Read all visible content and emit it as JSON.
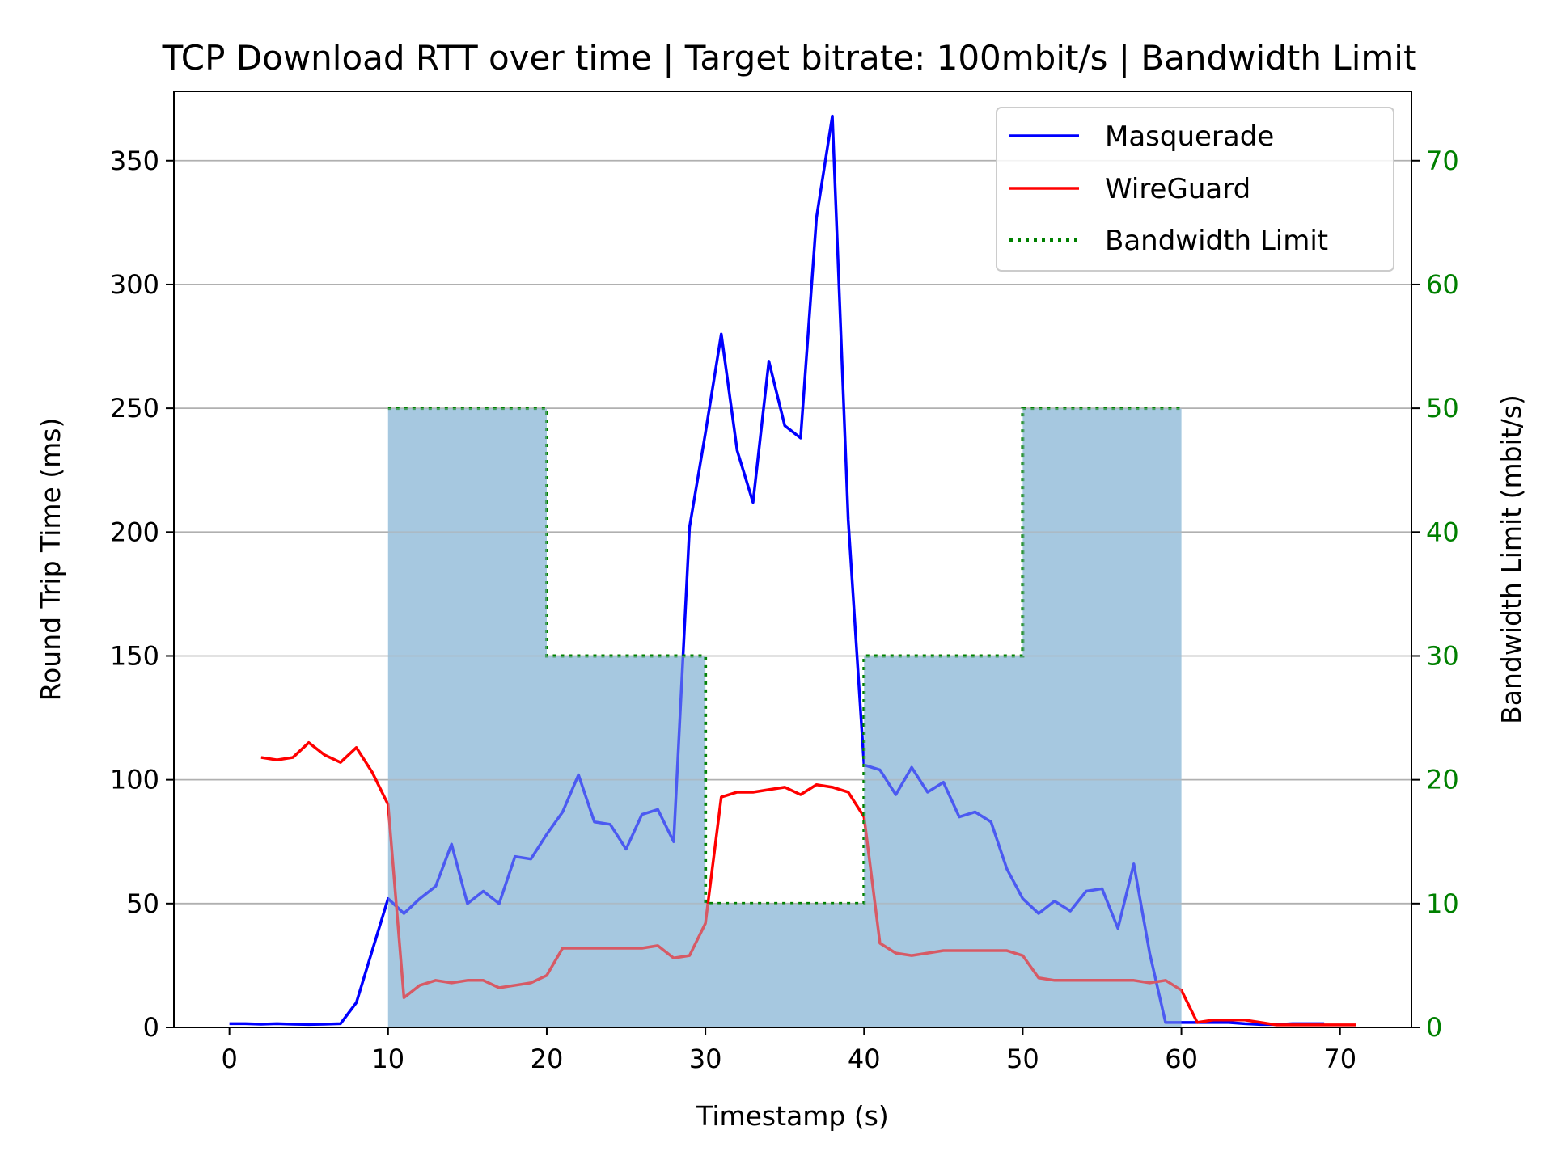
{
  "chart_data": {
    "type": "line",
    "title": "TCP Download RTT over time | Target bitrate: 100mbit/s | Bandwidth Limit",
    "xlabel": "Timestamp (s)",
    "ylabel": "Round Trip Time (ms)",
    "y2label": "Bandwidth Limit (mbit/s)",
    "xlim": [
      -3.5,
      74.5
    ],
    "ylim": [
      0,
      378
    ],
    "y2lim": [
      0,
      75.6
    ],
    "xticks": [
      "0",
      "10",
      "20",
      "30",
      "40",
      "50",
      "60",
      "70"
    ],
    "yticks": [
      "0",
      "50",
      "100",
      "150",
      "200",
      "250",
      "300",
      "350"
    ],
    "y2ticks": [
      "0",
      "10",
      "20",
      "30",
      "40",
      "50",
      "60",
      "70"
    ],
    "grid": "horizontal",
    "legend_position": "top-right",
    "colors": {
      "masquerade": "#0000ff",
      "wireguard": "#ff0000",
      "bandwidth": "#008000",
      "fill": "#a6c8e0",
      "grid": "#b0b0b0"
    },
    "series": [
      {
        "name": "Masquerade",
        "axis": "left",
        "style": "solid",
        "color": "#0000ff",
        "x": [
          0,
          1,
          2,
          3,
          4,
          5,
          6,
          7,
          8,
          9,
          10,
          11,
          12,
          13,
          14,
          15,
          16,
          17,
          18,
          19,
          20,
          21,
          22,
          23,
          24,
          25,
          26,
          27,
          28,
          29,
          30,
          31,
          32,
          33,
          34,
          35,
          36,
          37,
          38,
          39,
          40,
          41,
          42,
          43,
          44,
          45,
          46,
          47,
          48,
          49,
          50,
          51,
          52,
          53,
          54,
          55,
          56,
          57,
          58,
          59,
          60,
          61,
          62,
          63,
          64,
          65,
          66,
          67,
          68,
          69
        ],
        "y": [
          1.5,
          1.5,
          1.3,
          1.5,
          1.3,
          1.2,
          1.3,
          1.5,
          10,
          31,
          52,
          46,
          52,
          57,
          74,
          50,
          55,
          50,
          69,
          68,
          78,
          87,
          102,
          83,
          82,
          72,
          86,
          88,
          75,
          202,
          240,
          280,
          233,
          212,
          269,
          243,
          238,
          327,
          368,
          205,
          106,
          104,
          94,
          105,
          95,
          99,
          85,
          87,
          83,
          64,
          52,
          46,
          51,
          47,
          55,
          56,
          40,
          66,
          30,
          2,
          2,
          2,
          2,
          2,
          1.5,
          1.2,
          1.2,
          1.5,
          1.5,
          1.5
        ]
      },
      {
        "name": "WireGuard",
        "axis": "left",
        "style": "solid",
        "color": "#ff0000",
        "x": [
          2,
          3,
          4,
          5,
          6,
          7,
          8,
          9,
          10,
          11,
          12,
          13,
          14,
          15,
          16,
          17,
          18,
          19,
          20,
          21,
          22,
          23,
          24,
          25,
          26,
          27,
          28,
          29,
          30,
          31,
          32,
          33,
          34,
          35,
          36,
          37,
          38,
          39,
          40,
          41,
          42,
          43,
          44,
          45,
          46,
          47,
          48,
          49,
          50,
          51,
          52,
          53,
          54,
          55,
          56,
          57,
          58,
          59,
          60,
          61,
          62,
          63,
          64,
          65,
          66,
          67,
          68,
          69,
          70,
          71
        ],
        "y": [
          109,
          108,
          109,
          115,
          110,
          107,
          113,
          103,
          90,
          12,
          17,
          19,
          18,
          19,
          19,
          16,
          17,
          18,
          21,
          32,
          32,
          32,
          32,
          32,
          32,
          33,
          28,
          29,
          42,
          93,
          95,
          95,
          96,
          97,
          94,
          98,
          97,
          95,
          85,
          34,
          30,
          29,
          30,
          31,
          31,
          31,
          31,
          31,
          29,
          20,
          19,
          19,
          19,
          19,
          19,
          19,
          18,
          19,
          15,
          2,
          3,
          3,
          3,
          2,
          1,
          1,
          1,
          1,
          1,
          1
        ]
      },
      {
        "name": "Bandwidth Limit",
        "axis": "right",
        "style": "dotted",
        "color": "#008000",
        "x": [
          10,
          20,
          20,
          30,
          30,
          40,
          40,
          50,
          50,
          60
        ],
        "y": [
          50,
          50,
          30,
          30,
          10,
          10,
          30,
          30,
          50,
          50
        ]
      }
    ]
  }
}
